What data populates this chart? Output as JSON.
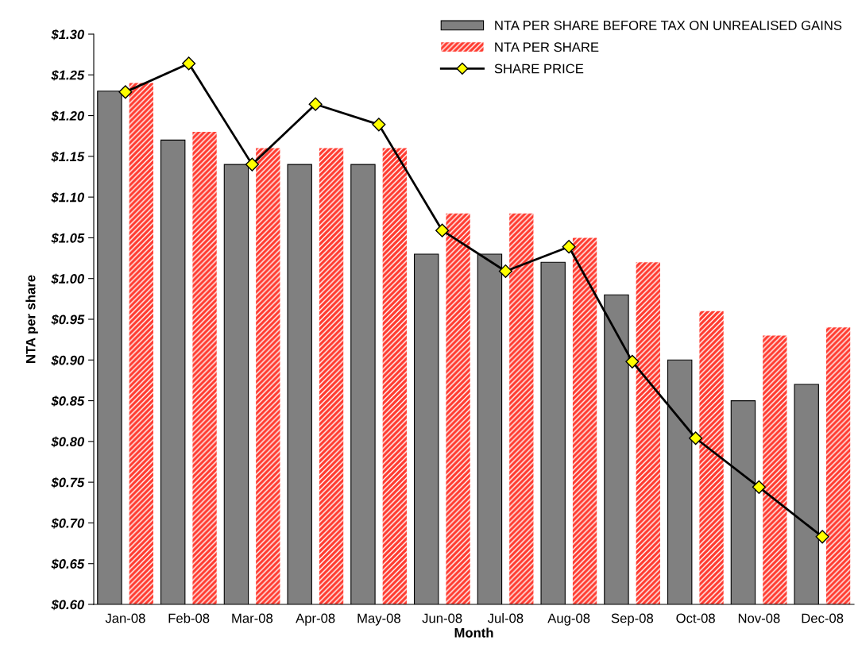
{
  "chart_data": {
    "type": "bar",
    "xlabel": "Month",
    "ylabel": "NTA per share",
    "categories": [
      "Jan-08",
      "Feb-08",
      "Mar-08",
      "Apr-08",
      "May-08",
      "Jun-08",
      "Jul-08",
      "Aug-08",
      "Sep-08",
      "Oct-08",
      "Nov-08",
      "Dec-08"
    ],
    "series": [
      {
        "name": "NTA PER SHARE BEFORE TAX ON UNREALISED GAINS",
        "color": "#808080",
        "values": [
          1.23,
          1.17,
          1.14,
          1.14,
          1.14,
          1.03,
          1.03,
          1.02,
          0.98,
          0.9,
          0.85,
          0.87
        ]
      },
      {
        "name": "NTA PER SHARE",
        "color": "#ff3b30",
        "values": [
          1.24,
          1.18,
          1.16,
          1.16,
          1.16,
          1.08,
          1.08,
          1.05,
          1.02,
          0.96,
          0.93,
          0.94
        ]
      },
      {
        "name": "SHARE PRICE",
        "type": "line",
        "color": "#000000",
        "marker": "diamond",
        "values": [
          1.229,
          1.264,
          1.14,
          1.214,
          1.189,
          1.059,
          1.009,
          1.039,
          0.898,
          0.804,
          0.744,
          0.683
        ]
      }
    ],
    "ylim": [
      0.6,
      1.3
    ],
    "yticks": [
      {
        "value": 0.6,
        "label": "$0.60"
      },
      {
        "value": 0.65,
        "label": "$0.65"
      },
      {
        "value": 0.7,
        "label": "$0.70"
      },
      {
        "value": 0.75,
        "label": "$0.75"
      },
      {
        "value": 0.8,
        "label": "$0.80"
      },
      {
        "value": 0.85,
        "label": "$0.85"
      },
      {
        "value": 0.9,
        "label": "$0.90"
      },
      {
        "value": 0.95,
        "label": "$0.95"
      },
      {
        "value": 1.0,
        "label": "$1.00"
      },
      {
        "value": 1.05,
        "label": "$1.05"
      },
      {
        "value": 1.1,
        "label": "$1.10"
      },
      {
        "value": 1.15,
        "label": "$1.15"
      },
      {
        "value": 1.2,
        "label": "$1.20"
      },
      {
        "value": 1.25,
        "label": "$1.25"
      },
      {
        "value": 1.3,
        "label": "$1.30"
      }
    ],
    "grid": false,
    "legend": "top right"
  }
}
